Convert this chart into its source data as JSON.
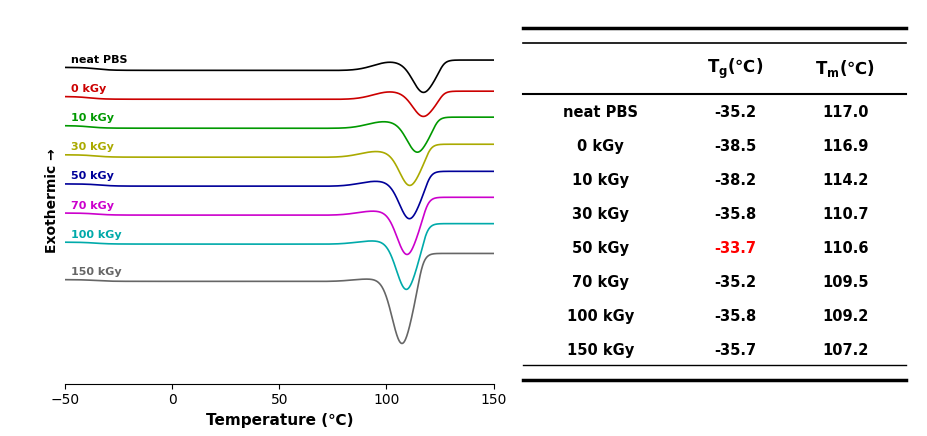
{
  "table_rows": [
    {
      "label": "neat PBS",
      "tg": "-35.2",
      "tm": "117.0",
      "tg_color": "black"
    },
    {
      "label": "0 kGy",
      "tg": "-38.5",
      "tm": "116.9",
      "tg_color": "black"
    },
    {
      "label": "10 kGy",
      "tg": "-38.2",
      "tm": "114.2",
      "tg_color": "black"
    },
    {
      "label": "30 kGy",
      "tg": "-35.8",
      "tm": "110.7",
      "tg_color": "black"
    },
    {
      "label": "50 kGy",
      "tg": "-33.7",
      "tm": "110.6",
      "tg_color": "red"
    },
    {
      "label": "70 kGy",
      "tg": "-35.2",
      "tm": "109.5",
      "tg_color": "black"
    },
    {
      "label": "100 kGy",
      "tg": "-35.8",
      "tm": "109.2",
      "tg_color": "black"
    },
    {
      "label": "150 kGy",
      "tg": "-35.7",
      "tm": "107.2",
      "tg_color": "black"
    }
  ],
  "curve_labels": [
    "neat PBS",
    "0 kGy",
    "10 kGy",
    "30 kGy",
    "50 kGy",
    "70 kGy",
    "100 kGy",
    "150 kGy"
  ],
  "curve_colors": [
    "#000000",
    "#cc0000",
    "#009900",
    "#aaaa00",
    "#000099",
    "#cc00cc",
    "#00aaaa",
    "#666666"
  ],
  "xlabel": "Temperature (℃)",
  "ylabel": "Exothermic →",
  "xmin": -50,
  "xmax": 150,
  "bg_color": "#ffffff",
  "curve_params": [
    [
      -35.2,
      117.0,
      0.1,
      0.28,
      0.035,
      2.2
    ],
    [
      -38.5,
      116.9,
      0.09,
      0.22,
      0.032,
      1.85
    ],
    [
      -38.2,
      114.2,
      0.08,
      0.3,
      0.03,
      1.5
    ],
    [
      -35.8,
      110.7,
      0.07,
      0.35,
      0.028,
      1.15
    ],
    [
      -33.7,
      110.6,
      0.06,
      0.4,
      0.026,
      0.8
    ],
    [
      -35.2,
      109.5,
      0.05,
      0.48,
      0.024,
      0.45
    ],
    [
      -35.8,
      109.2,
      0.04,
      0.55,
      0.022,
      0.1
    ],
    [
      -35.7,
      107.2,
      0.03,
      0.75,
      0.02,
      -0.35
    ]
  ]
}
